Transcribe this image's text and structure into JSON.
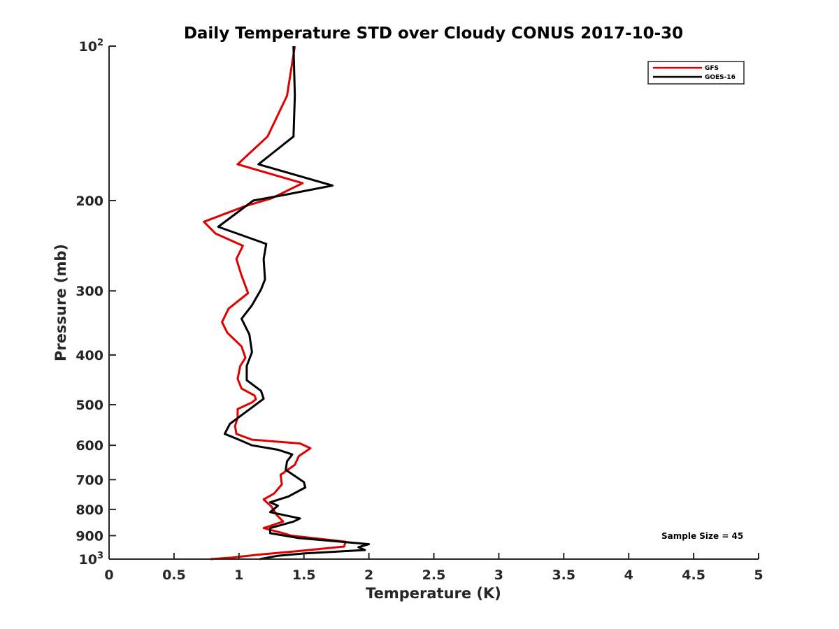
{
  "chart_data": {
    "type": "line",
    "title": "Daily Temperature STD over Cloudy CONUS 2017-10-30",
    "xlabel": "Temperature (K)",
    "ylabel": "Pressure (mb)",
    "xlim": [
      0,
      5
    ],
    "ylim": [
      100,
      1000
    ],
    "y_scale": "log",
    "y_reversed": true,
    "grid": false,
    "legend_position": "top-right",
    "x_ticks": [
      {
        "value": 0,
        "label": "0"
      },
      {
        "value": 0.5,
        "label": "0.5"
      },
      {
        "value": 1,
        "label": "1"
      },
      {
        "value": 1.5,
        "label": "1.5"
      },
      {
        "value": 2,
        "label": "2"
      },
      {
        "value": 2.5,
        "label": "2.5"
      },
      {
        "value": 3,
        "label": "3"
      },
      {
        "value": 3.5,
        "label": "3.5"
      },
      {
        "value": 4,
        "label": "4"
      },
      {
        "value": 4.5,
        "label": "4.5"
      },
      {
        "value": 5,
        "label": "5"
      }
    ],
    "y_ticks": [
      {
        "value": 100,
        "label": "10",
        "sup": "2"
      },
      {
        "value": 200,
        "label": "200",
        "sup": ""
      },
      {
        "value": 300,
        "label": "300",
        "sup": ""
      },
      {
        "value": 400,
        "label": "400",
        "sup": ""
      },
      {
        "value": 500,
        "label": "500",
        "sup": ""
      },
      {
        "value": 600,
        "label": "600",
        "sup": ""
      },
      {
        "value": 700,
        "label": "700",
        "sup": ""
      },
      {
        "value": 800,
        "label": "800",
        "sup": ""
      },
      {
        "value": 900,
        "label": "900",
        "sup": ""
      },
      {
        "value": 1000,
        "label": "10",
        "sup": "3"
      }
    ],
    "annotation": "Sample Size = 45",
    "series": [
      {
        "name": "GFS",
        "color": "#e00000",
        "points": [
          [
            1.43,
            100
          ],
          [
            1.37,
            125
          ],
          [
            1.22,
            150
          ],
          [
            0.99,
            170
          ],
          [
            1.49,
            185
          ],
          [
            1.25,
            198
          ],
          [
            1.05,
            205
          ],
          [
            0.73,
            220
          ],
          [
            0.82,
            232
          ],
          [
            1.03,
            245
          ],
          [
            0.98,
            260
          ],
          [
            1.02,
            280
          ],
          [
            1.07,
            303
          ],
          [
            0.92,
            325
          ],
          [
            0.87,
            345
          ],
          [
            0.91,
            362
          ],
          [
            1.02,
            385
          ],
          [
            1.05,
            405
          ],
          [
            1.01,
            420
          ],
          [
            0.99,
            445
          ],
          [
            1.02,
            465
          ],
          [
            1.12,
            480
          ],
          [
            1.13,
            488
          ],
          [
            1.1,
            495
          ],
          [
            0.99,
            510
          ],
          [
            0.99,
            530
          ],
          [
            0.97,
            550
          ],
          [
            0.98,
            570
          ],
          [
            1.1,
            585
          ],
          [
            1.47,
            595
          ],
          [
            1.55,
            608
          ],
          [
            1.46,
            630
          ],
          [
            1.43,
            655
          ],
          [
            1.32,
            685
          ],
          [
            1.33,
            715
          ],
          [
            1.27,
            745
          ],
          [
            1.19,
            765
          ],
          [
            1.25,
            790
          ],
          [
            1.29,
            820
          ],
          [
            1.34,
            845
          ],
          [
            1.19,
            870
          ],
          [
            1.34,
            890
          ],
          [
            1.4,
            900
          ],
          [
            1.82,
            925
          ],
          [
            1.81,
            945
          ],
          [
            1.45,
            965
          ],
          [
            1.15,
            980
          ],
          [
            0.95,
            993
          ],
          [
            0.78,
            1000
          ]
        ]
      },
      {
        "name": "GOES-16",
        "color": "#000000",
        "points": [
          [
            1.42,
            100
          ],
          [
            1.43,
            125
          ],
          [
            1.42,
            150
          ],
          [
            1.15,
            170
          ],
          [
            1.72,
            187
          ],
          [
            1.35,
            195
          ],
          [
            1.11,
            200
          ],
          [
            0.84,
            225
          ],
          [
            1.21,
            243
          ],
          [
            1.19,
            260
          ],
          [
            1.2,
            285
          ],
          [
            1.17,
            298
          ],
          [
            1.1,
            320
          ],
          [
            1.02,
            340
          ],
          [
            1.08,
            365
          ],
          [
            1.1,
            395
          ],
          [
            1.06,
            420
          ],
          [
            1.06,
            448
          ],
          [
            1.17,
            470
          ],
          [
            1.19,
            487
          ],
          [
            0.93,
            545
          ],
          [
            0.89,
            570
          ],
          [
            1.0,
            585
          ],
          [
            1.1,
            600
          ],
          [
            1.3,
            612
          ],
          [
            1.41,
            625
          ],
          [
            1.37,
            645
          ],
          [
            1.36,
            670
          ],
          [
            1.5,
            708
          ],
          [
            1.51,
            725
          ],
          [
            1.38,
            755
          ],
          [
            1.24,
            775
          ],
          [
            1.3,
            787
          ],
          [
            1.24,
            810
          ],
          [
            1.47,
            833
          ],
          [
            1.42,
            845
          ],
          [
            1.24,
            870
          ],
          [
            1.24,
            890
          ],
          [
            1.46,
            910
          ],
          [
            2.0,
            935
          ],
          [
            1.92,
            948
          ],
          [
            1.97,
            960
          ],
          [
            1.5,
            975
          ],
          [
            1.3,
            985
          ],
          [
            1.16,
            1000
          ]
        ]
      }
    ]
  }
}
